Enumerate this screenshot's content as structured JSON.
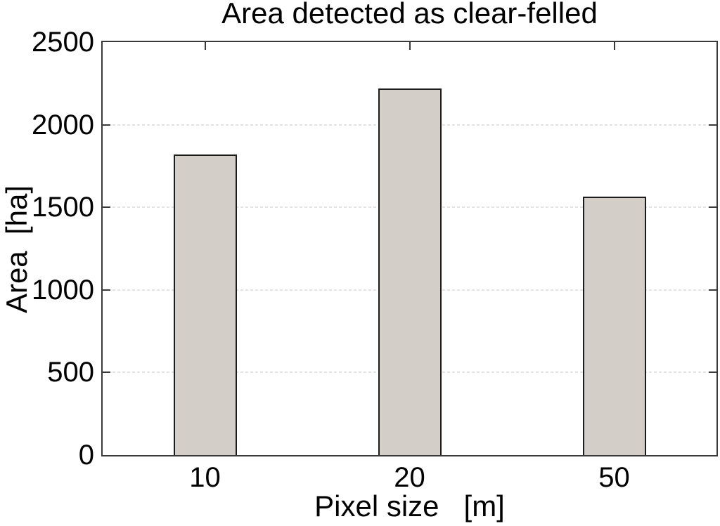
{
  "chart_data": {
    "type": "bar",
    "title": "Area detected as clear-felled",
    "xlabel": "Pixel size   [m]",
    "ylabel": "Area  [ha]",
    "categories": [
      "10",
      "20",
      "50"
    ],
    "values": [
      1820,
      2220,
      1565
    ],
    "ylim": [
      0,
      2500
    ],
    "yticks": [
      0,
      500,
      1000,
      1500,
      2000,
      2500
    ],
    "grid": {
      "horizontal": true,
      "vertical": false,
      "style": "dashed"
    },
    "legend": null,
    "tick_direction": "in",
    "box": true,
    "colors": {
      "bar_fill": "#d3cfc8",
      "bar_edge": "#1c1c1c",
      "axis": "#3a3a3a",
      "grid": "#e3e3e3",
      "text": "#000000",
      "background": "#ffffff"
    }
  }
}
